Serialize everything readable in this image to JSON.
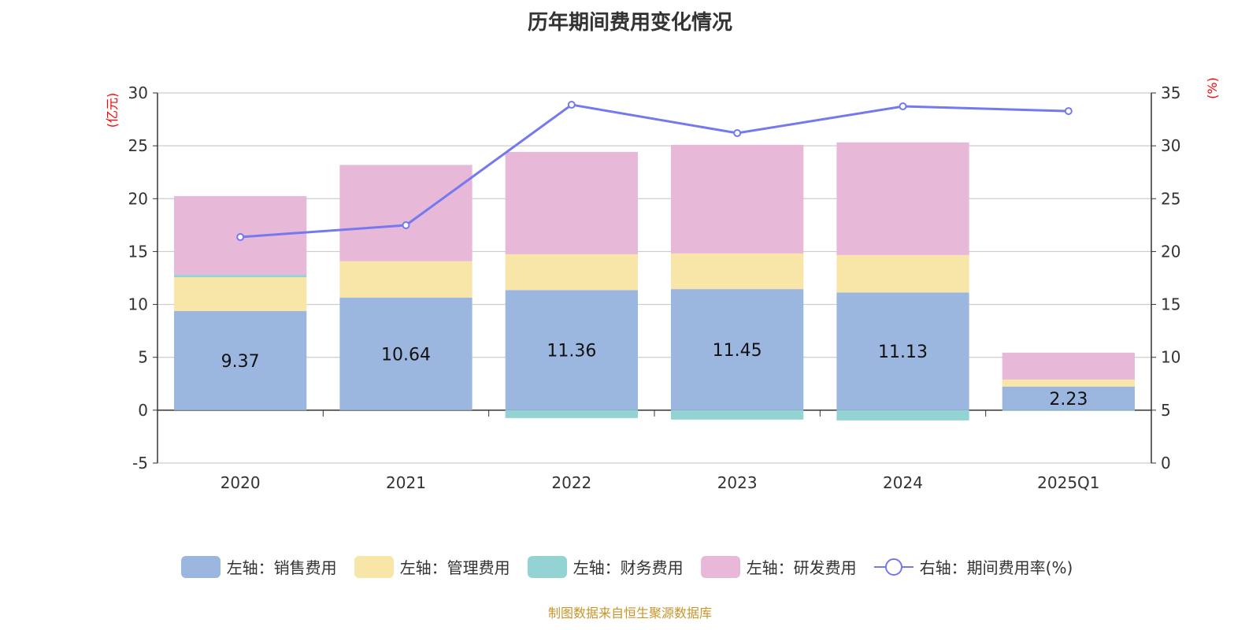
{
  "chart_data": {
    "type": "bar",
    "title": "历年期间费用变化情况",
    "categories": [
      "2020",
      "2021",
      "2022",
      "2023",
      "2024",
      "2025Q1"
    ],
    "y_left": {
      "label": "(亿元)",
      "range": [
        -5,
        30
      ],
      "ticks": [
        -5,
        0,
        5,
        10,
        15,
        20,
        25,
        30
      ]
    },
    "y_right": {
      "label": "(%)",
      "range": [
        0,
        35
      ],
      "ticks": [
        0,
        5,
        10,
        15,
        20,
        25,
        30,
        35
      ]
    },
    "series": [
      {
        "name": "左轴：销售费用",
        "type": "bar",
        "color": "#9bb7e0",
        "values": [
          9.37,
          10.64,
          11.36,
          11.45,
          11.13,
          2.23
        ],
        "labels": [
          "9.37",
          "10.64",
          "11.36",
          "11.45",
          "11.13",
          "2.23"
        ]
      },
      {
        "name": "左轴：管理费用",
        "type": "bar",
        "color": "#f8e6a8",
        "values": [
          3.2,
          3.45,
          3.38,
          3.37,
          3.54,
          0.67
        ]
      },
      {
        "name": "左轴：财务费用",
        "type": "bar",
        "color": "#93d3d3",
        "values": [
          0.22,
          0.0,
          -0.74,
          -0.89,
          -0.97,
          -0.05
        ]
      },
      {
        "name": "左轴：研发费用",
        "type": "bar",
        "color": "#e7b8d8",
        "values": [
          7.45,
          9.1,
          9.68,
          10.27,
          10.65,
          2.54
        ]
      },
      {
        "name": "右轴：期间费用率(%)",
        "type": "line",
        "color": "#7479f0",
        "values": [
          21.37,
          22.49,
          33.88,
          31.2,
          33.73,
          33.28
        ]
      }
    ],
    "grid": true,
    "legend_position": "bottom"
  },
  "source": "制图数据来自恒生聚源数据库"
}
